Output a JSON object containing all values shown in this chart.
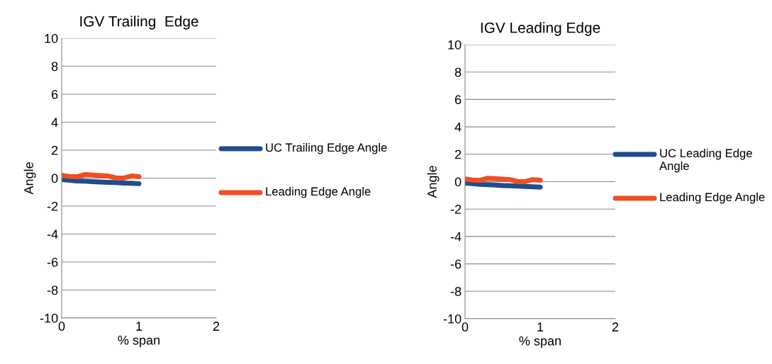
{
  "chart_data": [
    {
      "type": "line",
      "title": "IGV Trailing  Edge",
      "xlabel": "% span",
      "ylabel": "Angle",
      "x": [
        0,
        0.1,
        0.2,
        0.3,
        0.4,
        0.5,
        0.6,
        0.7,
        0.8,
        0.9,
        1.0
      ],
      "xlim": [
        0,
        2
      ],
      "xticks": [
        0,
        1,
        2
      ],
      "ylim": [
        -10,
        10
      ],
      "yticks": [
        -10,
        -8,
        -6,
        -4,
        -2,
        0,
        2,
        4,
        6,
        8,
        10
      ],
      "grid": "y",
      "legend": "right",
      "marker": "none",
      "line_style": "solid",
      "series": [
        {
          "name": "UC Trailing Edge Angle",
          "color": "#1f4e8c",
          "values": [
            -0.1,
            -0.15,
            -0.2,
            -0.22,
            -0.25,
            -0.28,
            -0.3,
            -0.32,
            -0.35,
            -0.37,
            -0.4
          ]
        },
        {
          "name": "Leading Edge Angle",
          "color": "#f04e23",
          "values": [
            0.2,
            0.12,
            0.1,
            0.25,
            0.22,
            0.18,
            0.15,
            0.02,
            0.0,
            0.15,
            0.1
          ]
        }
      ]
    },
    {
      "type": "line",
      "title": "IGV Leading Edge",
      "xlabel": "% span",
      "ylabel": "Angle",
      "x": [
        0,
        0.1,
        0.2,
        0.3,
        0.4,
        0.5,
        0.6,
        0.7,
        0.8,
        0.9,
        1.0
      ],
      "xlim": [
        0,
        2
      ],
      "xticks": [
        0,
        1,
        2
      ],
      "ylim": [
        -10,
        10
      ],
      "yticks": [
        -10,
        -8,
        -6,
        -4,
        -2,
        0,
        2,
        4,
        6,
        8,
        10
      ],
      "grid": "y",
      "legend": "right",
      "marker": "none",
      "line_style": "solid",
      "series": [
        {
          "name": "UC Leading Edge Angle",
          "color": "#1f4e8c",
          "values": [
            -0.1,
            -0.15,
            -0.2,
            -0.22,
            -0.25,
            -0.28,
            -0.3,
            -0.32,
            -0.35,
            -0.37,
            -0.4
          ]
        },
        {
          "name": "Leading Edge Angle",
          "color": "#f04e23",
          "values": [
            0.2,
            0.12,
            0.1,
            0.25,
            0.22,
            0.18,
            0.15,
            0.02,
            0.0,
            0.15,
            0.1
          ]
        }
      ]
    }
  ]
}
